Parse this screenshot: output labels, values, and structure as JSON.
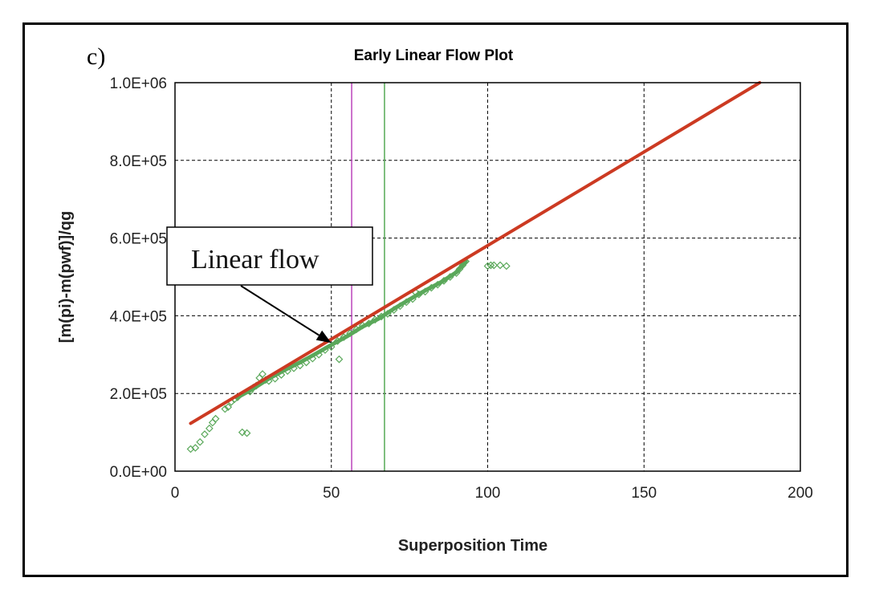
{
  "panel_label": "c)",
  "annotation": {
    "text": "Linear flow",
    "target": [
      51,
      330000
    ]
  },
  "chart_data": {
    "type": "scatter",
    "title": "Early Linear Flow Plot",
    "xlabel": "Superposition Time",
    "ylabel": "[m(pi)-m(pwf)]/qg",
    "xlim": [
      0,
      200
    ],
    "ylim": [
      0,
      1000000
    ],
    "x_ticks": [
      0,
      50,
      100,
      150,
      200
    ],
    "y_ticks": [
      0,
      200000,
      400000,
      600000,
      800000,
      1000000
    ],
    "x_tick_labels": [
      "0",
      "50",
      "100",
      "150",
      "200"
    ],
    "y_tick_labels": [
      "0.0E+00",
      "2.0E+05",
      "4.0E+05",
      "6.0E+05",
      "8.0E+05",
      "1.0E+06"
    ],
    "grid": true,
    "series": [
      {
        "kind": "scatter",
        "color": "#5aa85a",
        "marker": "diamond-open",
        "points": [
          [
            5,
            57000
          ],
          [
            6.5,
            60000
          ],
          [
            8,
            75000
          ],
          [
            9.5,
            95000
          ],
          [
            11,
            110000
          ],
          [
            12,
            125000
          ],
          [
            13,
            135000
          ],
          [
            16,
            160000
          ],
          [
            17,
            165000
          ],
          [
            18,
            178000
          ],
          [
            19,
            185000
          ],
          [
            20,
            190000
          ],
          [
            21.5,
            100000
          ],
          [
            23,
            98000
          ],
          [
            24,
            205000
          ],
          [
            25,
            215000
          ],
          [
            26,
            220000
          ],
          [
            27,
            240000
          ],
          [
            28,
            250000
          ],
          [
            29,
            235000
          ],
          [
            30,
            232000
          ],
          [
            32,
            238000
          ],
          [
            34,
            248000
          ],
          [
            36,
            258000
          ],
          [
            38,
            265000
          ],
          [
            40,
            272000
          ],
          [
            42,
            280000
          ],
          [
            44,
            290000
          ],
          [
            46,
            300000
          ],
          [
            48,
            312000
          ],
          [
            50,
            320000
          ],
          [
            52,
            335000
          ],
          [
            52.5,
            288000
          ],
          [
            54,
            345000
          ],
          [
            56,
            355000
          ],
          [
            58,
            365000
          ],
          [
            60,
            375000
          ],
          [
            62,
            380000
          ],
          [
            64,
            390000
          ],
          [
            66,
            398000
          ],
          [
            68,
            405000
          ],
          [
            70,
            415000
          ],
          [
            72,
            425000
          ],
          [
            74,
            435000
          ],
          [
            76,
            443000
          ],
          [
            77,
            460000
          ],
          [
            78,
            455000
          ],
          [
            80,
            462000
          ],
          [
            82,
            472000
          ],
          [
            84,
            480000
          ],
          [
            86,
            490000
          ],
          [
            88,
            500000
          ],
          [
            90,
            510000
          ],
          [
            91,
            520000
          ],
          [
            92,
            530000
          ],
          [
            93,
            540000
          ],
          [
            100,
            528000
          ],
          [
            101,
            530000
          ],
          [
            102,
            530000
          ],
          [
            104,
            530000
          ],
          [
            106,
            528000
          ]
        ]
      },
      {
        "kind": "line",
        "color": "#5aa85a",
        "points": [
          [
            20,
            190000
          ],
          [
            25,
            212000
          ],
          [
            30,
            238000
          ],
          [
            35,
            260000
          ],
          [
            40,
            280000
          ],
          [
            45,
            302000
          ],
          [
            50,
            325000
          ],
          [
            55,
            347000
          ],
          [
            60,
            372000
          ],
          [
            65,
            392000
          ],
          [
            70,
            418000
          ],
          [
            75,
            442000
          ],
          [
            80,
            465000
          ],
          [
            85,
            486000
          ],
          [
            90,
            512000
          ],
          [
            93,
            540000
          ]
        ]
      },
      {
        "kind": "line",
        "color": "#cc3a22",
        "points": [
          [
            5,
            123000
          ],
          [
            187,
            1000000
          ]
        ]
      },
      {
        "kind": "vline",
        "color": "#bb44bb",
        "x": 56.5
      },
      {
        "kind": "vline",
        "color": "#55aa55",
        "x": 67
      }
    ]
  }
}
